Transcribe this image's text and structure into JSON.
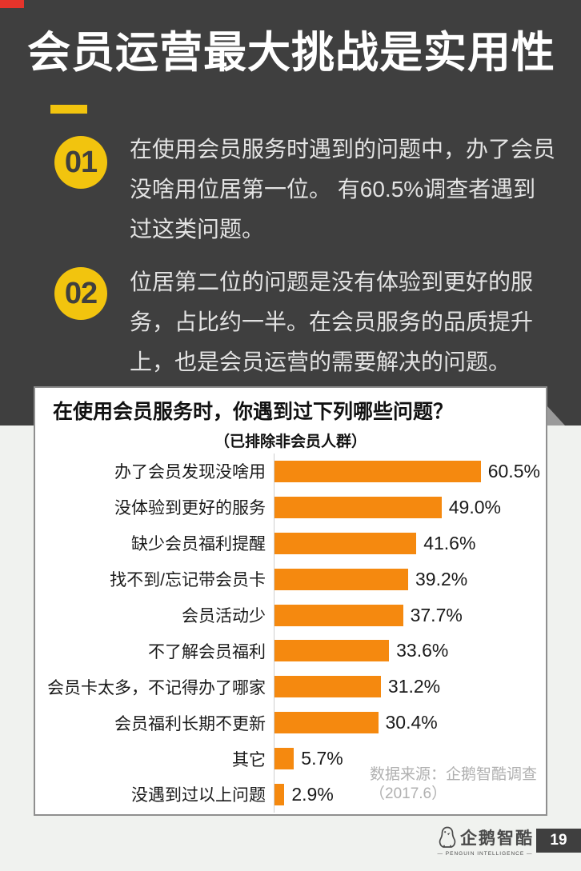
{
  "page": {
    "title": "会员运营最大挑战是实用性",
    "page_number": "19"
  },
  "points": [
    {
      "number": "01",
      "text": "在使用会员服务时遇到的问题中，办了会员没啥用位居第一位。 有60.5%调查者遇到过这类问题。",
      "lines": [
        "在使用会员服务时遇到的问题中，办了会员",
        "没啥用位居第一位。 有60.5%调查者遇到",
        "过这类问题。"
      ]
    },
    {
      "number": "02",
      "text": "位居第二位的问题是没有体验到更好的服务，占比约一半。在会员服务的品质提升上，也是会员运营的需要解决的问题。",
      "lines": [
        "位居第二位的问题是没有体验到更好的服",
        "务，占比约一半。在会员服务的品质提升",
        "上，也是会员运营的需要解决的问题。"
      ]
    }
  ],
  "chart_data": {
    "type": "bar",
    "orientation": "horizontal",
    "title": "在使用会员服务时，你遇到过下列哪些问题？",
    "subtitle": "（已排除非会员人群）",
    "categories": [
      "办了会员发现没啥用",
      "没体验到更好的服务",
      "缺少会员福利提醒",
      "找不到/忘记带会员卡",
      "会员活动少",
      "不了解会员福利",
      "会员卡太多，不记得办了哪家",
      "会员福利长期不更新",
      "其它",
      "没遇到过以上问题"
    ],
    "values": [
      60.5,
      49.0,
      41.6,
      39.2,
      37.7,
      33.6,
      31.2,
      30.4,
      5.7,
      2.9
    ],
    "value_labels": [
      "60.5%",
      "49.0%",
      "41.6%",
      "39.2%",
      "37.7%",
      "33.6%",
      "31.2%",
      "30.4%",
      "5.7%",
      "2.9%"
    ],
    "xlim": [
      0,
      70
    ],
    "grid": false,
    "legend": false,
    "bar_color": "#F5890F",
    "source": "数据来源：企鹅智酷调查（2017.6）",
    "source_lines": [
      "数据来源：企鹅智酷调查",
      "（2017.6）"
    ]
  },
  "footer": {
    "logo_text": "企鹅智酷",
    "logo_subtext": "— PENGUIN INTELLIGENCE —",
    "page_number": "19"
  },
  "colors": {
    "hero_background": "#3F3F3F",
    "accent_yellow": "#F2C40E",
    "accent_red": "#E5342B",
    "bar_orange": "#F5890F",
    "page_background": "#F0F2EF",
    "title_text": "#FFFFFF",
    "body_text": "#E3E3E3",
    "source_text": "#B0B0B0"
  }
}
